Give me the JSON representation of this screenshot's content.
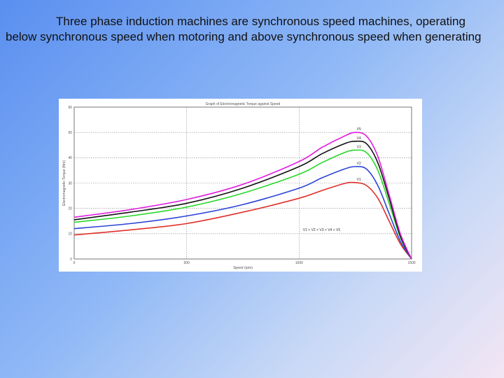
{
  "slide": {
    "text": "Three phase induction machines are synchronous speed machines, operating below synchronous speed when motoring and above synchronous speed when generating"
  },
  "chart_data": {
    "type": "line",
    "title": "Graph of Electromagnetic Torque against Speed",
    "xlabel": "Speed (rpm)",
    "ylabel": "Electromagnetic Torque (Nm)",
    "xlim": [
      0,
      1500
    ],
    "ylim": [
      0,
      60
    ],
    "xticks": [
      0,
      500,
      1000,
      1500
    ],
    "yticks": [
      0,
      10,
      20,
      30,
      40,
      50,
      60
    ],
    "grid": true,
    "annotation": "V1 < V2 < V3 < V4 < V5",
    "x": [
      0,
      250,
      500,
      750,
      1000,
      1100,
      1200,
      1250,
      1300,
      1350,
      1400,
      1450,
      1500
    ],
    "series": [
      {
        "name": "V1",
        "color": "#e0302a",
        "values": [
          9.5,
          11.5,
          14,
          18.5,
          24,
          27,
          29.8,
          30.2,
          29,
          24,
          15,
          6,
          0
        ]
      },
      {
        "name": "V2",
        "color": "#2a44d8",
        "values": [
          12,
          14,
          17,
          21.5,
          28,
          32,
          35.5,
          36.5,
          35.5,
          29,
          18,
          7,
          0
        ]
      },
      {
        "name": "V3",
        "color": "#28d828",
        "values": [
          14.5,
          17,
          20.5,
          26,
          33.5,
          38,
          42,
          43,
          42,
          35,
          22,
          8.5,
          0
        ]
      },
      {
        "name": "V4",
        "color": "#111111",
        "values": [
          15.5,
          18.5,
          22,
          28,
          36.5,
          41.5,
          45.5,
          46.5,
          45.5,
          38,
          24,
          9,
          0
        ]
      },
      {
        "name": "V5",
        "color": "#e020e0",
        "values": [
          16.5,
          19.5,
          23.5,
          29.5,
          38.5,
          44,
          48.5,
          50,
          48.5,
          40.5,
          25.5,
          10,
          0
        ]
      }
    ],
    "colors": {
      "background": "#ffffff",
      "grid": "#888888",
      "axis": "#555555"
    }
  }
}
